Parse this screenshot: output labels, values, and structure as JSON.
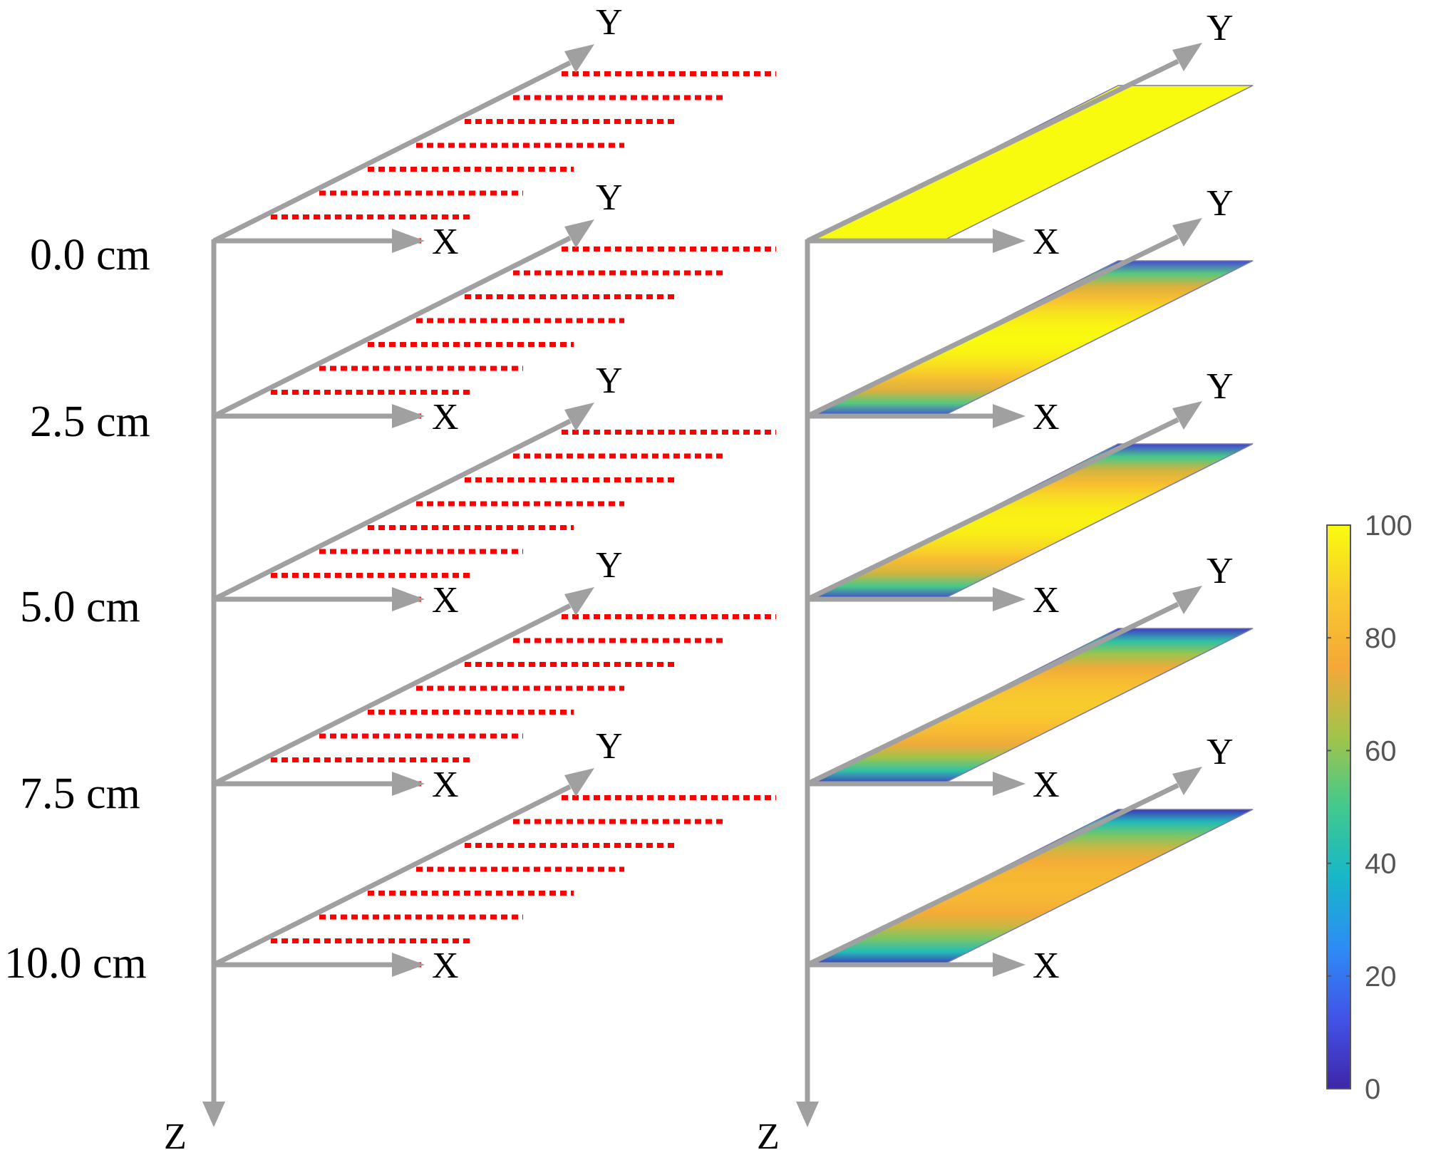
{
  "depth_labels": [
    "0.0 cm",
    "2.5 cm",
    "5.0 cm",
    "7.5 cm",
    "10.0 cm"
  ],
  "axis_labels": {
    "x": "X",
    "y": "Y",
    "z": "Z"
  },
  "colorbar": {
    "ticks": [
      "0",
      "20",
      "40",
      "60",
      "80",
      "100"
    ],
    "range": [
      0,
      100
    ]
  },
  "layer_profiles": [
    {
      "edge_value": 100,
      "peak_value": 100
    },
    {
      "edge_value": 10,
      "peak_value": 100
    },
    {
      "edge_value": 8,
      "peak_value": 98
    },
    {
      "edge_value": 6,
      "peak_value": 88
    },
    {
      "edge_value": 4,
      "peak_value": 82
    }
  ],
  "colors": {
    "axis": "#a0a0a0",
    "scan_lines": "#ff0000",
    "colormap": [
      "#3e26a8",
      "#4253e8",
      "#2d8cf5",
      "#17b7c8",
      "#41c98e",
      "#a2c44a",
      "#f5a838",
      "#f8c92e",
      "#f9fb0e"
    ]
  }
}
